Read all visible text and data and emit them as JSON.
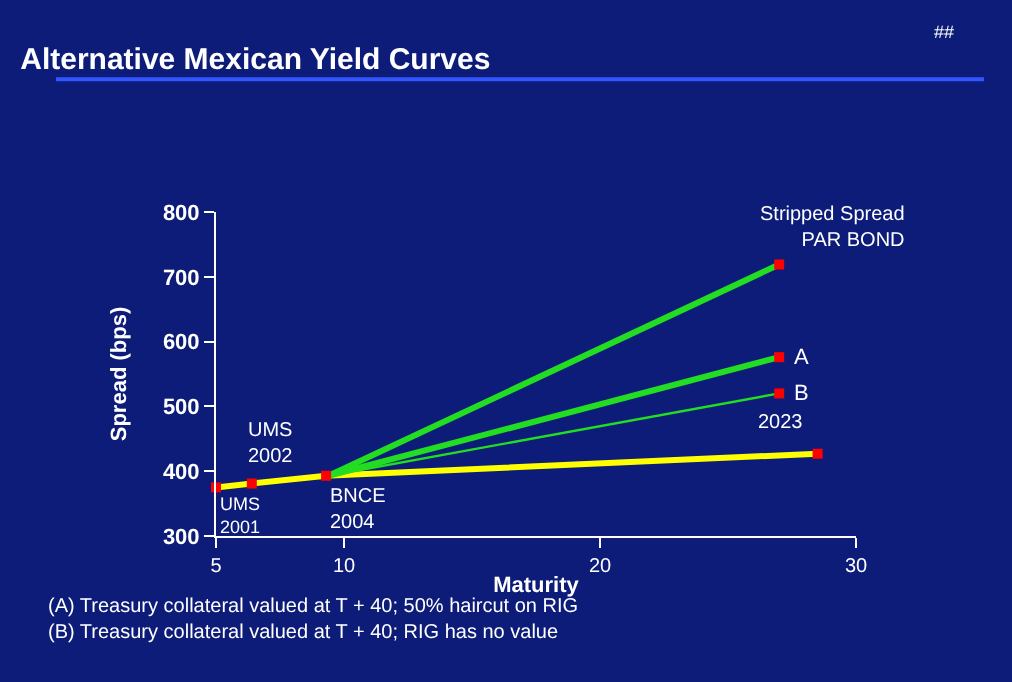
{
  "chart_data": {
    "type": "line",
    "title": "Alternative Mexican Yield Curves",
    "xlabel": "Maturity",
    "ylabel": "Spread (bps)",
    "xlim": [
      5,
      30
    ],
    "xticks": [
      5,
      10,
      20,
      30
    ],
    "ylim": [
      300,
      800
    ],
    "yticks": [
      300,
      400,
      500,
      600,
      700,
      800
    ],
    "grid": false,
    "line_style": "solid",
    "series": [
      {
        "color": "#ffff00",
        "x": [
          5,
          6.4,
          9.3,
          28.5
        ],
        "values": [
          375,
          381,
          393,
          427
        ],
        "marker": "none"
      },
      {
        "color": "#22dd22",
        "x": [
          9.4,
          27
        ],
        "values": [
          393,
          719
        ],
        "marker": "none"
      },
      {
        "color": "#22dd22",
        "x": [
          9.4,
          27
        ],
        "values": [
          393,
          576
        ],
        "marker": "none"
      },
      {
        "color": "#22dd22",
        "x": [
          9.4,
          27
        ],
        "values": [
          393,
          520
        ],
        "marker": "none"
      },
      {
        "type": "scatter",
        "color": "#ff0000",
        "x": [
          5,
          6.4,
          9.3,
          28.5,
          27,
          27,
          27
        ],
        "values": [
          375,
          381,
          393,
          427,
          719,
          576,
          520
        ],
        "marker": "square"
      }
    ],
    "annotations": [
      {
        "text": "UMS\n2001",
        "x": 5,
        "y": 375
      },
      {
        "text": "UMS\n2002",
        "x": 6.4,
        "y": 381
      },
      {
        "text": "BNCE\n2004",
        "x": 9.3,
        "y": 393
      },
      {
        "text": "2023",
        "x": 28.5,
        "y": 427
      },
      {
        "text": "Stripped Spread\nPAR BOND",
        "x": 27,
        "y": 719
      },
      {
        "text": "A",
        "x": 27,
        "y": 576
      },
      {
        "text": "B",
        "x": 27,
        "y": 520
      },
      "(A) Treasury collateral valued at T + 40; 50% haircut on RIG\n(B) Treasury collateral valued at T + 40; RIG has no value",
      "##"
    ]
  }
}
